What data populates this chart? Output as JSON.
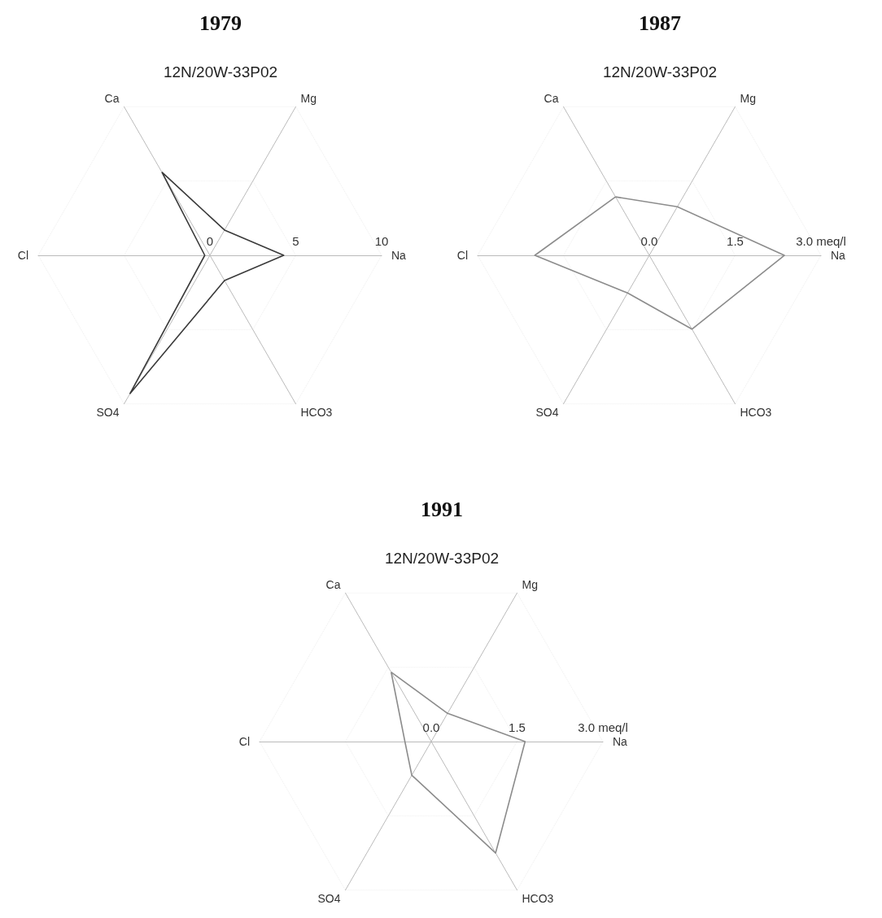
{
  "chart_data": [
    {
      "type": "radar",
      "title": "1979",
      "subtitle": "12N/20W-33P02",
      "categories": [
        "Mg",
        "Na",
        "HCO3",
        "SO4",
        "Cl",
        "Ca"
      ],
      "ylim": [
        0,
        10
      ],
      "yticks": [
        0,
        5,
        10
      ],
      "marker": "none",
      "series": [
        {
          "color": "#3a3a3a",
          "values": [
            1.7,
            4.3,
            1.7,
            9.3,
            0.3,
            5.6
          ]
        }
      ]
    },
    {
      "type": "radar",
      "title": "1987",
      "subtitle": "12N/20W-33P02",
      "categories": [
        "Mg",
        "Na",
        "HCO3",
        "SO4",
        "Cl",
        "Ca"
      ],
      "ylim": [
        0,
        3
      ],
      "yticks": [
        {
          "value": 0,
          "label": "0.0"
        },
        {
          "value": 1.5,
          "label": "1.5"
        },
        {
          "value": 3,
          "label": "3.0 meq/l"
        }
      ],
      "marker": "none",
      "series": [
        {
          "color": "#8c8c8c",
          "values": [
            0.98,
            2.36,
            1.49,
            0.76,
            2.0,
            1.18
          ]
        }
      ]
    },
    {
      "type": "radar",
      "title": "1991",
      "subtitle": "12N/20W-33P02",
      "categories": [
        "Mg",
        "Na",
        "HCO3",
        "SO4",
        "Cl",
        "Ca"
      ],
      "ylim": [
        0,
        3
      ],
      "yticks": [
        {
          "value": 0,
          "label": "0.0"
        },
        {
          "value": 1.5,
          "label": "1.5"
        },
        {
          "value": 3,
          "label": "3.0 meq/l"
        }
      ],
      "marker": "none",
      "series": [
        {
          "color": "#8c8c8c",
          "values": [
            0.57,
            1.64,
            2.25,
            0.68,
            0.46,
            1.4
          ]
        }
      ]
    }
  ]
}
